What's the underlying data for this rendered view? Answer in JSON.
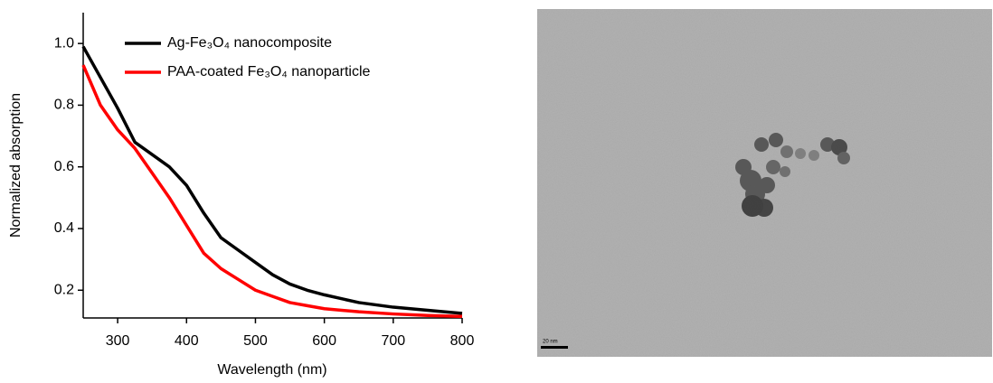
{
  "chart_data": {
    "type": "line",
    "xlabel": "Wavelength (nm)",
    "ylabel": "Normalized absorption",
    "x": [
      250,
      275,
      300,
      325,
      350,
      375,
      400,
      425,
      450,
      475,
      500,
      525,
      550,
      575,
      600,
      650,
      700,
      750,
      800
    ],
    "series": [
      {
        "name": "Ag-Fe₃O₄ nanocomposite",
        "color": "#000000",
        "values": [
          0.99,
          0.89,
          0.79,
          0.68,
          0.64,
          0.6,
          0.54,
          0.45,
          0.37,
          0.33,
          0.29,
          0.25,
          0.22,
          0.2,
          0.185,
          0.16,
          0.145,
          0.135,
          0.125
        ]
      },
      {
        "name": "PAA-coated Fe₃O₄ nanoparticle",
        "color": "#ff0000",
        "values": [
          0.93,
          0.8,
          0.72,
          0.66,
          0.58,
          0.5,
          0.41,
          0.32,
          0.27,
          0.235,
          0.2,
          0.18,
          0.16,
          0.15,
          0.14,
          0.13,
          0.123,
          0.118,
          0.115
        ]
      }
    ],
    "xlim": [
      250,
      800
    ],
    "xticks": [
      300,
      400,
      500,
      600,
      700,
      800
    ],
    "ylim": [
      0.11,
      1.1
    ],
    "yticks": [
      0.2,
      0.4,
      0.6,
      0.8,
      {
        "value": 1,
        "label": "1.0"
      }
    ],
    "grid": false,
    "legend": "top-right"
  },
  "image": {
    "scale_bar_label": "20 nm"
  }
}
